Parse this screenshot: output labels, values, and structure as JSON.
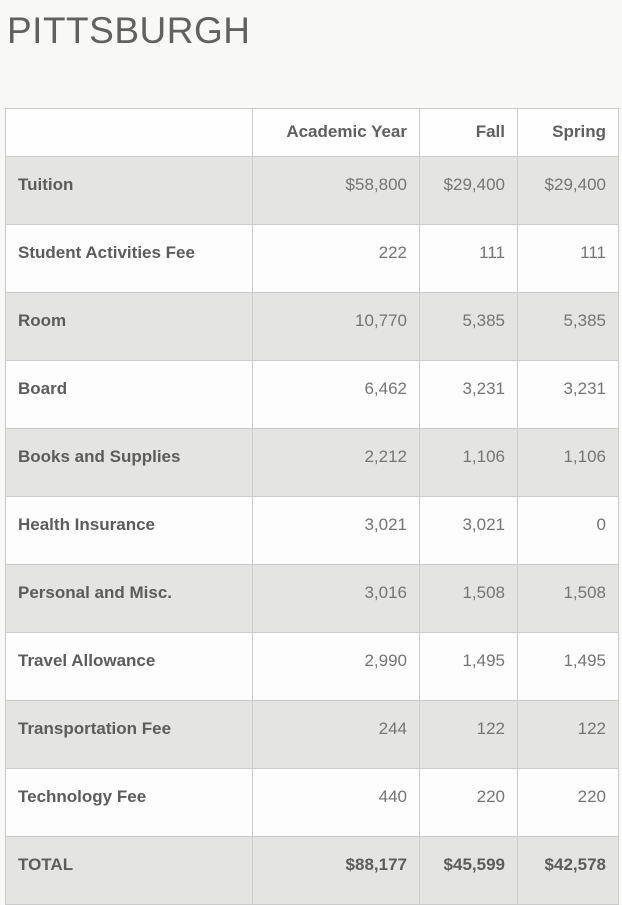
{
  "page": {
    "title": "PITTSBURGH"
  },
  "colors": {
    "page_bg": "#f8f8f6",
    "shaded_row_bg": "#e4e4e2",
    "plain_row_bg": "#fdfdfd",
    "border": "#cbcbcb",
    "title_text": "#616161",
    "label_text": "#5c5c5c",
    "value_text": "#757575"
  },
  "table": {
    "headers": [
      "",
      "Academic Year",
      "Fall",
      "Spring"
    ],
    "rows": [
      {
        "label": "Tuition",
        "values": [
          "$58,800",
          "$29,400",
          "$29,400"
        ]
      },
      {
        "label": "Student Activities Fee",
        "values": [
          "222",
          "111",
          "111"
        ]
      },
      {
        "label": "Room",
        "values": [
          "10,770",
          "5,385",
          "5,385"
        ]
      },
      {
        "label": "Board",
        "values": [
          "6,462",
          "3,231",
          "3,231"
        ]
      },
      {
        "label": "Books and Supplies",
        "values": [
          "2,212",
          "1,106",
          "1,106"
        ]
      },
      {
        "label": "Health Insurance",
        "values": [
          "3,021",
          "3,021",
          "0"
        ]
      },
      {
        "label": "Personal and Misc.",
        "values": [
          "3,016",
          "1,508",
          "1,508"
        ]
      },
      {
        "label": "Travel Allowance",
        "values": [
          "2,990",
          "1,495",
          "1,495"
        ]
      },
      {
        "label": "Transportation Fee",
        "values": [
          "244",
          "122",
          "122"
        ]
      },
      {
        "label": "Technology Fee",
        "values": [
          "440",
          "220",
          "220"
        ]
      },
      {
        "label": "TOTAL",
        "values": [
          "$88,177",
          "$45,599",
          "$42,578"
        ]
      }
    ]
  }
}
